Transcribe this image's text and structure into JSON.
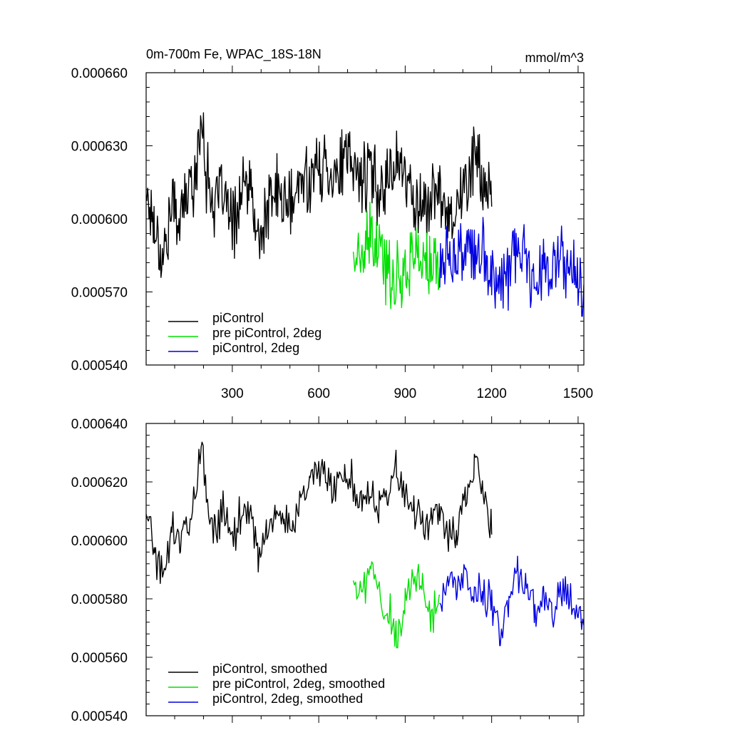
{
  "chart_data": [
    {
      "type": "line",
      "title_left": "0m-700m Fe, WPAC_18S-18N",
      "title_right": "mmol/m^3",
      "xlim": [
        1,
        1520
      ],
      "ylim": [
        0.00054,
        0.00066
      ],
      "xticks": [
        300,
        600,
        900,
        1200,
        1500
      ],
      "xtick_labels": [
        "300",
        "600",
        "900",
        "1200",
        "1500"
      ],
      "yticks": [
        0.00054,
        0.00057,
        0.0006,
        0.00063,
        0.00066
      ],
      "ytick_labels": [
        "0.000540",
        "0.000570",
        "0.000600",
        "0.000630",
        "0.000660"
      ],
      "legend_position": "bottom-left",
      "series": [
        {
          "name": "piControl",
          "color": "#000000",
          "x": [
            1,
            30,
            60,
            90,
            120,
            150,
            180,
            195,
            210,
            240,
            270,
            300,
            330,
            360,
            390,
            420,
            450,
            480,
            510,
            540,
            570,
            600,
            630,
            660,
            690,
            720,
            750,
            780,
            810,
            840,
            870,
            900,
            930,
            960,
            990,
            1020,
            1050,
            1080,
            1110,
            1140,
            1170,
            1200
          ],
          "y": [
            0.000612,
            0.000598,
            0.000584,
            0.000605,
            0.000601,
            0.000612,
            0.000622,
            0.000646,
            0.000618,
            0.000605,
            0.000611,
            0.000596,
            0.00061,
            0.000614,
            0.000589,
            0.000602,
            0.000612,
            0.000607,
            0.000605,
            0.000616,
            0.000618,
            0.00062,
            0.000622,
            0.000618,
            0.000624,
            0.000621,
            0.000617,
            0.000619,
            0.000612,
            0.000617,
            0.000626,
            0.000616,
            0.000609,
            0.000604,
            0.000608,
            0.000611,
            0.000603,
            0.000605,
            0.000613,
            0.000627,
            0.000616,
            0.000605
          ]
        },
        {
          "name": "pre piControl, 2deg",
          "color": "#00e000",
          "x": [
            720,
            750,
            780,
            810,
            840,
            870,
            900,
            930,
            960,
            990,
            1020
          ],
          "y": [
            0.000586,
            0.000582,
            0.000592,
            0.000585,
            0.000579,
            0.000575,
            0.00058,
            0.000586,
            0.000584,
            0.000578,
            0.00058
          ]
        },
        {
          "name": "piControl, 2deg",
          "color": "#0000e0",
          "x": [
            1020,
            1050,
            1080,
            1110,
            1140,
            1170,
            1200,
            1230,
            1260,
            1290,
            1320,
            1350,
            1380,
            1410,
            1440,
            1470,
            1500,
            1520
          ],
          "y": [
            0.00058,
            0.000586,
            0.000583,
            0.000587,
            0.000584,
            0.000584,
            0.000579,
            0.000572,
            0.000578,
            0.000586,
            0.000582,
            0.000577,
            0.000581,
            0.000578,
            0.000583,
            0.000579,
            0.000575,
            0.000573
          ]
        }
      ]
    },
    {
      "type": "line",
      "xlim": [
        1,
        1520
      ],
      "ylim": [
        0.00054,
        0.00064
      ],
      "xticks": [
        300,
        600,
        900,
        1200,
        1500
      ],
      "yticks": [
        0.00054,
        0.00056,
        0.00058,
        0.0006,
        0.00062,
        0.00064
      ],
      "ytick_labels": [
        "0.000540",
        "0.000560",
        "0.000580",
        "0.000600",
        "0.000620",
        "0.000640"
      ],
      "legend_position": "bottom-left",
      "series": [
        {
          "name": "piControl, smoothed",
          "color": "#000000",
          "x": [
            1,
            30,
            60,
            90,
            120,
            150,
            180,
            195,
            210,
            240,
            270,
            300,
            330,
            360,
            390,
            420,
            450,
            480,
            510,
            540,
            570,
            600,
            630,
            660,
            690,
            720,
            750,
            780,
            810,
            840,
            870,
            900,
            930,
            960,
            990,
            1020,
            1050,
            1080,
            1110,
            1140,
            1170,
            1200
          ],
          "y": [
            0.000612,
            0.000596,
            0.000586,
            0.000606,
            0.000601,
            0.000606,
            0.000621,
            0.000634,
            0.000612,
            0.000604,
            0.000612,
            0.000599,
            0.000609,
            0.000612,
            0.000592,
            0.000603,
            0.00061,
            0.000606,
            0.000605,
            0.000615,
            0.000618,
            0.000624,
            0.000622,
            0.000617,
            0.000624,
            0.00062,
            0.000615,
            0.000618,
            0.000612,
            0.000617,
            0.000625,
            0.000614,
            0.000609,
            0.000603,
            0.000607,
            0.00061,
            0.000603,
            0.000604,
            0.000613,
            0.000628,
            0.000615,
            0.000602
          ]
        },
        {
          "name": "pre piControl, 2deg, smoothed",
          "color": "#00e000",
          "x": [
            720,
            750,
            780,
            810,
            840,
            870,
            900,
            930,
            960,
            990,
            1020
          ],
          "y": [
            0.000588,
            0.00058,
            0.000589,
            0.000584,
            0.000577,
            0.000568,
            0.000581,
            0.000587,
            0.000582,
            0.000573,
            0.000581
          ]
        },
        {
          "name": "piControl, 2deg, smoothed",
          "color": "#0000e0",
          "x": [
            1020,
            1050,
            1080,
            1110,
            1140,
            1170,
            1200,
            1230,
            1260,
            1290,
            1320,
            1350,
            1380,
            1410,
            1440,
            1470,
            1500,
            1520
          ],
          "y": [
            0.000579,
            0.000585,
            0.000586,
            0.000589,
            0.000583,
            0.000583,
            0.000578,
            0.000569,
            0.000577,
            0.000589,
            0.000584,
            0.000576,
            0.00058,
            0.000576,
            0.000585,
            0.000579,
            0.000576,
            0.000571
          ]
        }
      ]
    }
  ]
}
